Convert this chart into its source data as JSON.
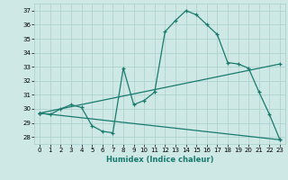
{
  "xlabel": "Humidex (Indice chaleur)",
  "xlim": [
    -0.5,
    23.5
  ],
  "ylim": [
    27.5,
    37.5
  ],
  "xticks": [
    0,
    1,
    2,
    3,
    4,
    5,
    6,
    7,
    8,
    9,
    10,
    11,
    12,
    13,
    14,
    15,
    16,
    17,
    18,
    19,
    20,
    21,
    22,
    23
  ],
  "yticks": [
    28,
    29,
    30,
    31,
    32,
    33,
    34,
    35,
    36,
    37
  ],
  "bg_color": "#cde8e5",
  "grid_color": "#aacfcc",
  "line_color": "#1a7a6e",
  "series1_x": [
    0,
    1,
    2,
    3,
    4,
    5,
    6,
    7,
    8,
    9,
    10,
    11,
    12,
    13,
    14,
    15,
    16,
    17,
    18,
    19,
    20,
    21,
    22,
    23
  ],
  "series1_y": [
    29.7,
    29.6,
    30.0,
    30.3,
    30.1,
    28.8,
    28.4,
    28.3,
    32.9,
    30.3,
    30.6,
    31.2,
    35.5,
    36.3,
    37.0,
    36.7,
    36.0,
    35.3,
    33.3,
    33.2,
    32.9,
    31.2,
    29.6,
    27.8
  ],
  "series2_x": [
    0,
    23
  ],
  "series2_y": [
    29.7,
    33.2
  ],
  "series3_x": [
    0,
    23
  ],
  "series3_y": [
    29.7,
    27.8
  ],
  "figsize": [
    3.2,
    2.0
  ],
  "dpi": 100
}
